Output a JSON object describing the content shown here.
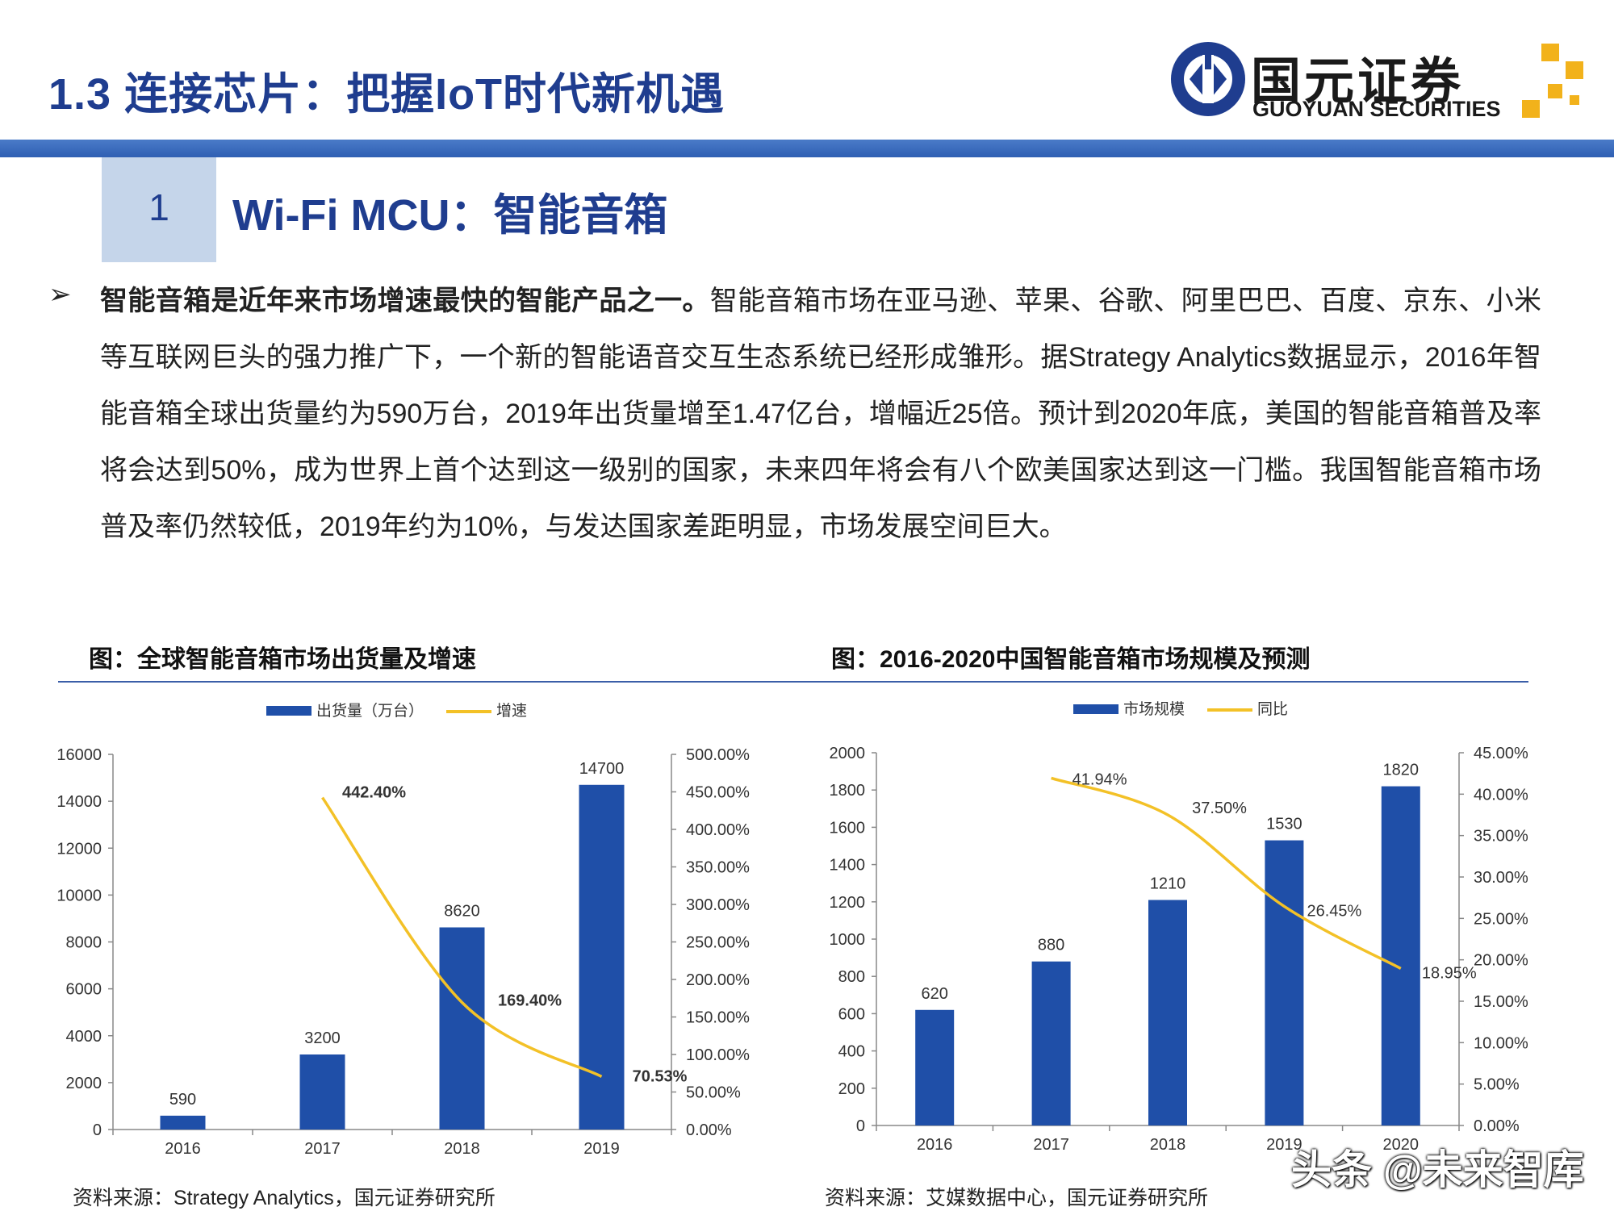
{
  "header": {
    "title": "1.3 连接芯片：把握IoT时代新机遇",
    "logo_cn": "国元证券",
    "logo_en": "GUOYUAN SECURITIES"
  },
  "section": {
    "number": "1",
    "title": "Wi-Fi MCU：智能音箱"
  },
  "bullet_symbol": "➢",
  "paragraph": {
    "lead": "智能音箱是近年来市场增速最快的智能产品之一。",
    "body": "智能音箱市场在亚马逊、苹果、谷歌、阿里巴巴、百度、京东、小米等互联网巨头的强力推广下，一个新的智能语音交互生态系统已经形成雏形。据Strategy Analytics数据显示，2016年智能音箱全球出货量约为590万台，2019年出货量增至1.47亿台，增幅近25倍。预计到2020年底，美国的智能音箱普及率将会达到50%，成为世界上首个达到这一级别的国家，未来四年将会有八个欧美国家达到这一门槛。我国智能音箱市场普及率仍然较低，2019年约为10%，与发达国家差距明显，市场发展空间巨大。"
  },
  "captions": {
    "left": "图：全球智能音箱市场出货量及增速",
    "right": "图：2016-2020中国智能音箱市场规模及预测"
  },
  "sources": {
    "left": "资料来源：Strategy Analytics，国元证券研究所",
    "right": "资料来源：艾媒数据中心，国元证券研究所"
  },
  "watermark": "头条 @未来智库",
  "colors": {
    "bar": "#1f4fa8",
    "line": "#f3c127",
    "brand": "#1f3d8f"
  },
  "chart_data": [
    {
      "type": "bar+line",
      "title": "图：全球智能音箱市场出货量及增速",
      "categories": [
        "2016",
        "2017",
        "2018",
        "2019"
      ],
      "series": [
        {
          "name": "出货量（万台）",
          "type": "bar",
          "axis": "left",
          "values": [
            590,
            3200,
            8620,
            14700
          ],
          "labels": [
            "590",
            "3200",
            "8620",
            "14700"
          ]
        },
        {
          "name": "增速",
          "type": "line",
          "axis": "right",
          "values": [
            null,
            442.4,
            169.4,
            70.53
          ],
          "labels": [
            "",
            "442.40%",
            "169.40%",
            "70.53%"
          ]
        }
      ],
      "left_axis": {
        "min": 0,
        "max": 16000,
        "ticks": [
          "0",
          "2000",
          "4000",
          "6000",
          "8000",
          "10000",
          "12000",
          "14000",
          "16000"
        ]
      },
      "right_axis": {
        "min": 0,
        "max": 500,
        "ticks": [
          "0.00%",
          "50.00%",
          "100.00%",
          "150.00%",
          "200.00%",
          "250.00%",
          "300.00%",
          "350.00%",
          "400.00%",
          "450.00%",
          "500.00%"
        ]
      },
      "legend": "top-center",
      "grid": false
    },
    {
      "type": "bar+line",
      "title": "图：2016-2020中国智能音箱市场规模及预测",
      "categories": [
        "2016",
        "2017",
        "2018",
        "2019",
        "2020"
      ],
      "series": [
        {
          "name": "市场规模",
          "type": "bar",
          "axis": "left",
          "values": [
            620,
            880,
            1210,
            1530,
            1820
          ],
          "labels": [
            "620",
            "880",
            "1210",
            "1530",
            "1820"
          ]
        },
        {
          "name": "同比",
          "type": "line",
          "axis": "right",
          "values": [
            null,
            41.94,
            37.5,
            26.45,
            18.95
          ],
          "labels": [
            "",
            "41.94%",
            "37.50%",
            "26.45%",
            "18.95%"
          ]
        }
      ],
      "left_axis": {
        "min": 0,
        "max": 2000,
        "ticks": [
          "0",
          "200",
          "400",
          "600",
          "800",
          "1000",
          "1200",
          "1400",
          "1600",
          "1800",
          "2000"
        ]
      },
      "right_axis": {
        "min": 0,
        "max": 45,
        "ticks": [
          "0.00%",
          "5.00%",
          "10.00%",
          "15.00%",
          "20.00%",
          "25.00%",
          "30.00%",
          "35.00%",
          "40.00%",
          "45.00%"
        ]
      },
      "legend": "top-center",
      "grid": false
    }
  ]
}
